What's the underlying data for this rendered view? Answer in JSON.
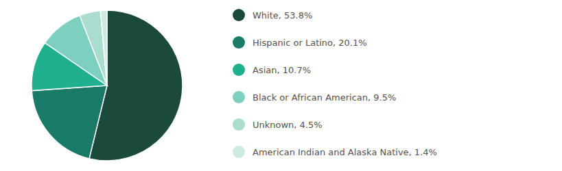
{
  "chart_data": {
    "type": "pie",
    "categories": [
      "White, 53.8%",
      "Hispanic or Latino, 20.1%",
      "Asian, 10.7%",
      "Black or African American, 9.5%",
      "Unknown, 4.5%",
      "American Indian and Alaska Native, 1.4%"
    ],
    "values": [
      53.8,
      20.1,
      10.7,
      9.5,
      4.5,
      1.4
    ],
    "colors": [
      "#1b4a3c",
      "#1a7a68",
      "#20b090",
      "#7dcfbf",
      "#aaddcf",
      "#cceae4"
    ],
    "legend": "right"
  }
}
